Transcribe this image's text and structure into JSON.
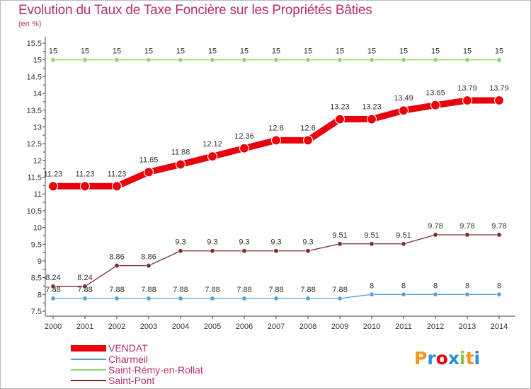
{
  "chart_data": {
    "type": "line",
    "title": "Evolution du Taux de Taxe Foncière sur les Propriétés Bâties",
    "subtitle": "(en %)",
    "x": [
      "2000",
      "2001",
      "2002",
      "2003",
      "2004",
      "2005",
      "2006",
      "2007",
      "2008",
      "2009",
      "2010",
      "2011",
      "2012",
      "2013",
      "2014"
    ],
    "ylim": [
      7.5,
      15.5
    ],
    "yticks": [
      "7.5",
      "8",
      "8.5",
      "9",
      "9.5",
      "10",
      "10.5",
      "11",
      "11.5",
      "12",
      "12.5",
      "13",
      "13.5",
      "14",
      "14.5",
      "15",
      "15.5"
    ],
    "grid": false,
    "legend_position": "bottom-left",
    "series": [
      {
        "name": "VENDAT",
        "color": "#e8000b",
        "values": [
          11.23,
          11.23,
          11.23,
          11.65,
          11.88,
          12.12,
          12.36,
          12.6,
          12.6,
          13.23,
          13.23,
          13.49,
          13.65,
          13.79,
          13.79
        ],
        "labels": [
          "11.23",
          "11.23",
          "11.23",
          "11.65",
          "11.88",
          "12.12",
          "12.36",
          "12.6",
          "12.6",
          "13.23",
          "13.23",
          "13.49",
          "13.65",
          "13.79",
          "13.79"
        ]
      },
      {
        "name": "Charmeil",
        "color": "#5a9fd4",
        "values": [
          7.88,
          7.88,
          7.88,
          7.88,
          7.88,
          7.88,
          7.88,
          7.88,
          7.88,
          7.88,
          8,
          8,
          8,
          8,
          8
        ],
        "labels": [
          "7.88",
          "7.88",
          "7.88",
          "7.88",
          "7.88",
          "7.88",
          "7.88",
          "7.88",
          "7.88",
          "7.88",
          "8",
          "8",
          "8",
          "8",
          "8"
        ]
      },
      {
        "name": "Saint-Rémy-en-Rollat",
        "color": "#8fd66a",
        "values": [
          15,
          15,
          15,
          15,
          15,
          15,
          15,
          15,
          15,
          15,
          15,
          15,
          15,
          15,
          15
        ],
        "labels": [
          "15",
          "15",
          "15",
          "15",
          "15",
          "15",
          "15",
          "15",
          "15",
          "15",
          "15",
          "15",
          "15",
          "15",
          "15"
        ]
      },
      {
        "name": "Saint-Pont",
        "color": "#7b2c2c",
        "values": [
          8.24,
          8.24,
          8.86,
          8.86,
          9.3,
          9.3,
          9.3,
          9.3,
          9.3,
          9.51,
          9.51,
          9.51,
          9.78,
          9.78,
          9.78
        ],
        "labels": [
          "8.24",
          "8.24",
          "8.86",
          "8.86",
          "9.3",
          "9.3",
          "9.3",
          "9.3",
          "9.3",
          "9.51",
          "9.51",
          "9.51",
          "9.78",
          "9.78",
          "9.78"
        ]
      }
    ]
  },
  "logo": {
    "text": "Proxiti",
    "colors": [
      "#f7941d",
      "#2b8fd6",
      "#e8000b",
      "#2b8fd6",
      "#8cc63f",
      "#f7941d",
      "#2b8fd6"
    ]
  }
}
